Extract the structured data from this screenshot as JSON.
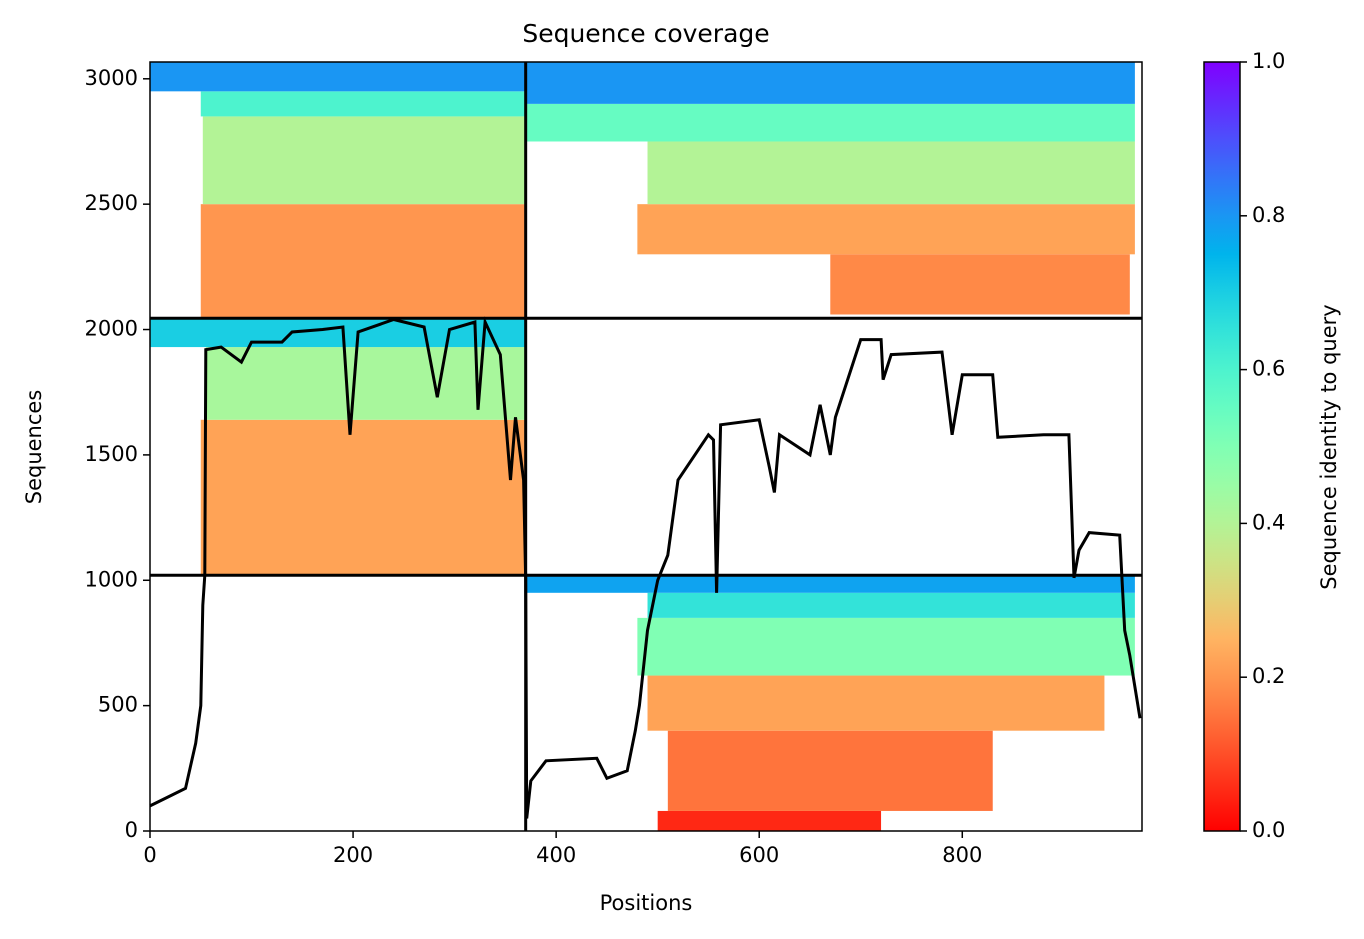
{
  "chart_data": {
    "type": "coverage",
    "title": "Sequence coverage",
    "x_label": "Positions",
    "y_label": "Sequences",
    "xlim": [
      0,
      977
    ],
    "xticks": [
      0,
      200,
      400,
      600,
      800
    ],
    "ylim": [
      0,
      3067
    ],
    "yticks": [
      0,
      500,
      1000,
      1500,
      2000,
      2500,
      3000
    ],
    "dividers_x": [
      370
    ],
    "dividers_y": [
      1020,
      2045
    ],
    "bands": [
      {
        "y": [
          2045,
          2500
        ],
        "x": [
          50,
          370
        ],
        "identity": 0.2
      },
      {
        "y": [
          2500,
          2850
        ],
        "x": [
          52,
          370
        ],
        "identity": 0.4
      },
      {
        "y": [
          2850,
          2950
        ],
        "x": [
          50,
          370
        ],
        "identity": 0.6
      },
      {
        "y": [
          2950,
          3067
        ],
        "x": [
          0,
          370
        ],
        "identity": 0.8
      },
      {
        "y": [
          2060,
          2300
        ],
        "x": [
          670,
          965
        ],
        "identity": 0.18
      },
      {
        "y": [
          2300,
          2500
        ],
        "x": [
          480,
          970
        ],
        "identity": 0.22
      },
      {
        "y": [
          2500,
          2750
        ],
        "x": [
          490,
          970
        ],
        "identity": 0.4
      },
      {
        "y": [
          2750,
          2900
        ],
        "x": [
          370,
          970
        ],
        "identity": 0.55
      },
      {
        "y": [
          2900,
          3067
        ],
        "x": [
          370,
          970
        ],
        "identity": 0.8
      },
      {
        "y": [
          1020,
          1640
        ],
        "x": [
          50,
          370
        ],
        "identity": 0.22
      },
      {
        "y": [
          1640,
          1930
        ],
        "x": [
          55,
          370
        ],
        "identity": 0.42
      },
      {
        "y": [
          1930,
          2045
        ],
        "x": [
          0,
          370
        ],
        "identity": 0.7
      },
      {
        "y": [
          0,
          80
        ],
        "x": [
          500,
          720
        ],
        "identity": 0.05
      },
      {
        "y": [
          80,
          400
        ],
        "x": [
          510,
          830
        ],
        "identity": 0.15
      },
      {
        "y": [
          400,
          620
        ],
        "x": [
          490,
          940
        ],
        "identity": 0.22
      },
      {
        "y": [
          620,
          850
        ],
        "x": [
          480,
          970
        ],
        "identity": 0.5
      },
      {
        "y": [
          850,
          950
        ],
        "x": [
          490,
          970
        ],
        "identity": 0.65
      },
      {
        "y": [
          950,
          1020
        ],
        "x": [
          370,
          970
        ],
        "identity": 0.78
      }
    ],
    "coverage": {
      "color": "#000000",
      "x": [
        0,
        20,
        35,
        40,
        45,
        50,
        52,
        54,
        55,
        70,
        90,
        100,
        130,
        140,
        170,
        190,
        197,
        205,
        240,
        270,
        283,
        295,
        320,
        323,
        330,
        345,
        355,
        360,
        368,
        370,
        371,
        375,
        390,
        440,
        450,
        470,
        478,
        482,
        490,
        500,
        510,
        520,
        550,
        555,
        558,
        562,
        600,
        610,
        615,
        620,
        650,
        660,
        670,
        675,
        700,
        720,
        722,
        730,
        780,
        790,
        800,
        830,
        835,
        880,
        905,
        910,
        915,
        925,
        955,
        960,
        965,
        975
      ],
      "values": [
        100,
        140,
        170,
        260,
        350,
        500,
        900,
        1020,
        1920,
        1930,
        1870,
        1950,
        1950,
        1990,
        2000,
        2010,
        1580,
        1990,
        2040,
        2010,
        1730,
        2000,
        2030,
        1680,
        2030,
        1900,
        1400,
        1650,
        1400,
        1000,
        50,
        200,
        280,
        290,
        210,
        240,
        400,
        500,
        800,
        1000,
        1100,
        1400,
        1580,
        1560,
        950,
        1620,
        1640,
        1450,
        1350,
        1580,
        1500,
        1700,
        1500,
        1650,
        1960,
        1960,
        1800,
        1900,
        1910,
        1580,
        1820,
        1820,
        1570,
        1580,
        1580,
        1010,
        1120,
        1190,
        1180,
        800,
        700,
        450
      ]
    },
    "colorbar": {
      "label": "Sequence identity to query",
      "lim": [
        0,
        1
      ],
      "ticks": [
        {
          "value": 0,
          "label": "0.0"
        },
        0.2,
        0.4,
        0.6,
        0.8,
        {
          "value": 1,
          "label": "1.0"
        }
      ]
    }
  }
}
